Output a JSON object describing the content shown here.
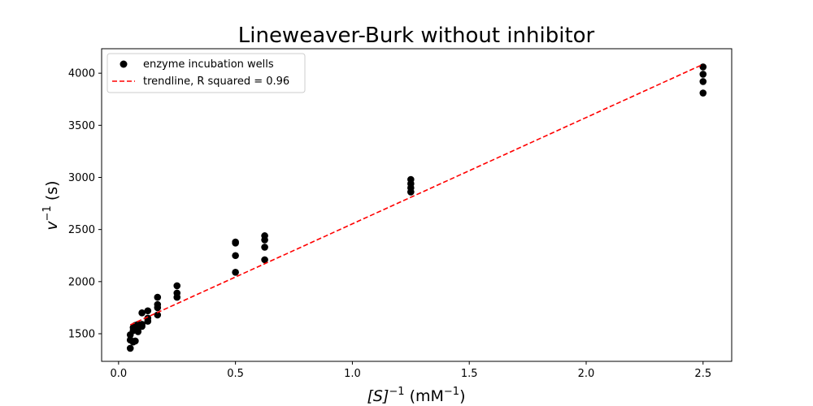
{
  "chart_data": {
    "type": "scatter",
    "title": "Lineweaver-Burk without inhibitor",
    "xlabel": {
      "base": "[S]",
      "sup": "−1",
      "unit_pre": " (mM",
      "unit_sup": "−1",
      "unit_post": ")"
    },
    "ylabel": {
      "base": "v",
      "sup": "−1",
      "post": " (s)"
    },
    "xlim": [
      -0.0725,
      2.6225
    ],
    "ylim": [
      1235,
      4235
    ],
    "x_ticks": [
      0.0,
      0.5,
      1.0,
      1.5,
      2.0,
      2.5
    ],
    "x_tick_labels": [
      "0.0",
      "0.5",
      "1.0",
      "1.5",
      "2.0",
      "2.5"
    ],
    "y_ticks": [
      1500,
      2000,
      2500,
      3000,
      3500,
      4000
    ],
    "y_tick_labels": [
      "1500",
      "2000",
      "2500",
      "3000",
      "3500",
      "4000"
    ],
    "grid": false,
    "legend_position": "top-left",
    "series": [
      {
        "name": "enzyme incubation wells",
        "kind": "scatter",
        "color": "#000000",
        "points": [
          [
            0.05,
            1360
          ],
          [
            0.05,
            1440
          ],
          [
            0.05,
            1490
          ],
          [
            0.0625,
            1420
          ],
          [
            0.0625,
            1530
          ],
          [
            0.0625,
            1560
          ],
          [
            0.0714,
            1430
          ],
          [
            0.0714,
            1550
          ],
          [
            0.0714,
            1580
          ],
          [
            0.0833,
            1520
          ],
          [
            0.0833,
            1570
          ],
          [
            0.0833,
            1590
          ],
          [
            0.1,
            1570
          ],
          [
            0.1,
            1590
          ],
          [
            0.1,
            1700
          ],
          [
            0.125,
            1620
          ],
          [
            0.125,
            1650
          ],
          [
            0.125,
            1720
          ],
          [
            0.1667,
            1680
          ],
          [
            0.1667,
            1750
          ],
          [
            0.1667,
            1780
          ],
          [
            0.1667,
            1850
          ],
          [
            0.25,
            1850
          ],
          [
            0.25,
            1890
          ],
          [
            0.25,
            1960
          ],
          [
            0.5,
            2090
          ],
          [
            0.5,
            2250
          ],
          [
            0.5,
            2370
          ],
          [
            0.5,
            2380
          ],
          [
            0.625,
            2210
          ],
          [
            0.625,
            2330
          ],
          [
            0.625,
            2400
          ],
          [
            0.625,
            2440
          ],
          [
            1.25,
            2860
          ],
          [
            1.25,
            2900
          ],
          [
            1.25,
            2940
          ],
          [
            1.25,
            2980
          ],
          [
            2.5,
            3810
          ],
          [
            2.5,
            3920
          ],
          [
            2.5,
            3990
          ],
          [
            2.5,
            4060
          ]
        ]
      },
      {
        "name": "trendline, R squared = 0.96",
        "kind": "line",
        "style": "dashed",
        "color": "#ff0000",
        "points": [
          [
            0.05,
            1585
          ],
          [
            2.5,
            4085
          ]
        ]
      }
    ]
  }
}
